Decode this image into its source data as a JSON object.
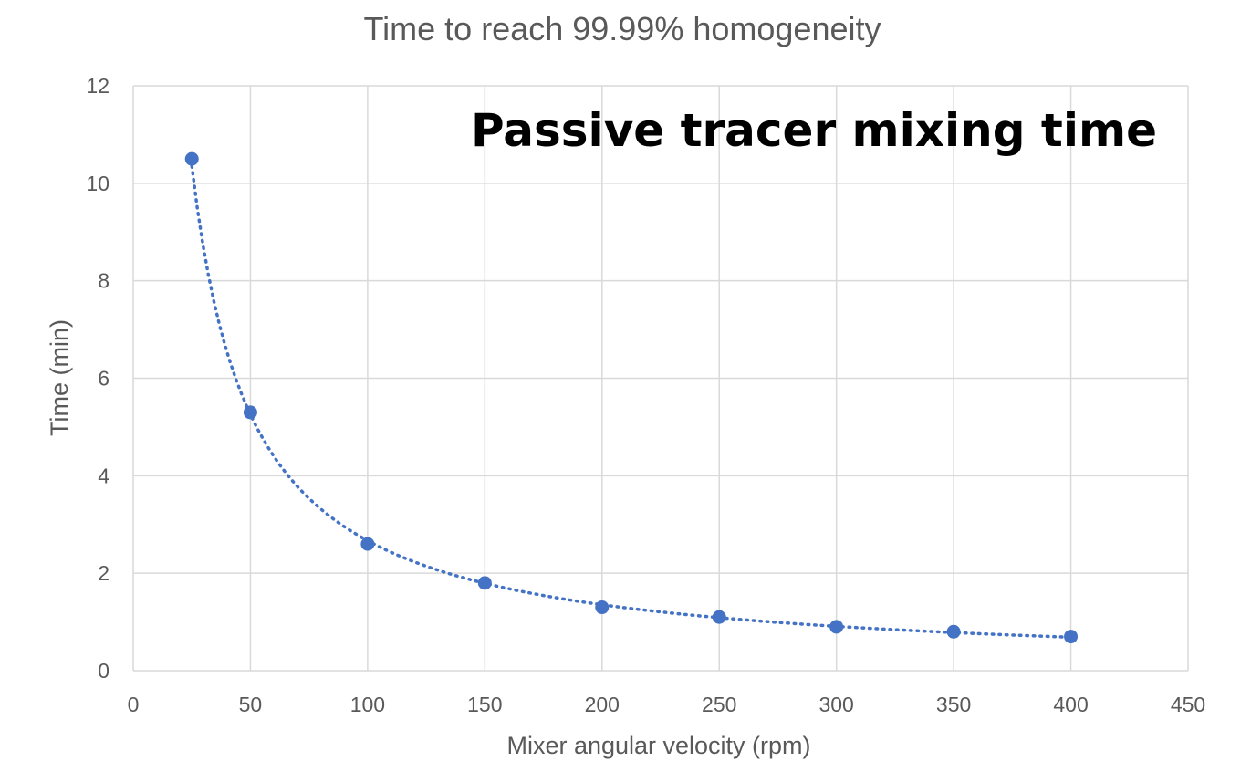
{
  "chart_data": {
    "type": "scatter",
    "title": "Time to reach 99.99% homogeneity",
    "annotation": "Passive tracer mixing time",
    "xlabel": "Mixer angular velocity (rpm)",
    "ylabel": "Time (min)",
    "xlim": [
      0,
      450
    ],
    "ylim": [
      0,
      12
    ],
    "x_ticks": [
      "0",
      "50",
      "100",
      "150",
      "200",
      "250",
      "300",
      "350",
      "400",
      "450"
    ],
    "y_ticks": [
      "0",
      "2",
      "4",
      "6",
      "8",
      "10",
      "12"
    ],
    "grid": true,
    "series": [
      {
        "x": [
          25,
          50,
          100,
          150,
          200,
          250,
          300,
          350,
          400
        ],
        "y": [
          10.5,
          5.3,
          2.6,
          1.8,
          1.3,
          1.1,
          0.9,
          0.8,
          0.7
        ],
        "trendline": "power, dotted"
      }
    ],
    "colors": {
      "marker": "#4472c4",
      "trendline": "#4472c4",
      "grid": "#d9d9d9",
      "text": "#595959"
    }
  }
}
